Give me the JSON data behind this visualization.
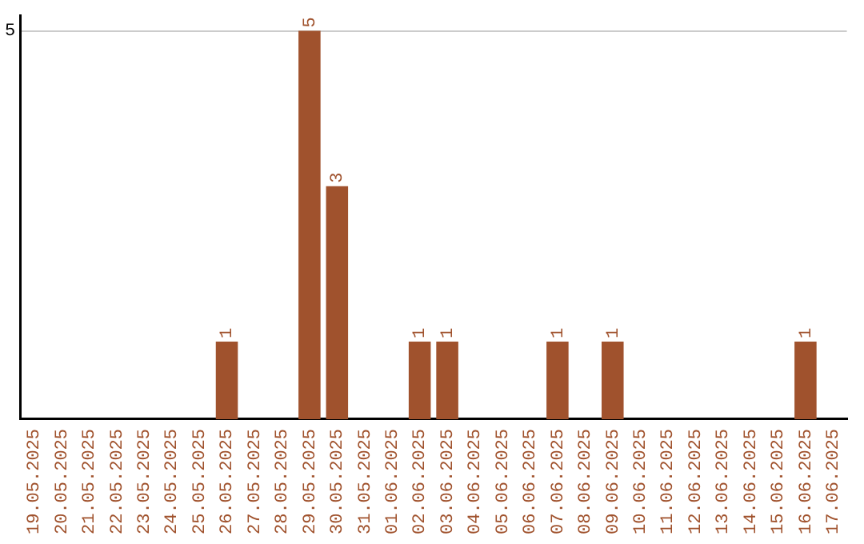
{
  "chart_data": {
    "type": "bar",
    "categories": [
      "19.05.2025",
      "20.05.2025",
      "21.05.2025",
      "22.05.2025",
      "23.05.2025",
      "24.05.2025",
      "25.05.2025",
      "26.05.2025",
      "27.05.2025",
      "28.05.2025",
      "29.05.2025",
      "30.05.2025",
      "31.05.2025",
      "01.06.2025",
      "02.06.2025",
      "03.06.2025",
      "04.06.2025",
      "05.06.2025",
      "06.06.2025",
      "07.06.2025",
      "08.06.2025",
      "09.06.2025",
      "10.06.2025",
      "11.06.2025",
      "12.06.2025",
      "13.06.2025",
      "14.06.2025",
      "15.06.2025",
      "16.06.2025",
      "17.06.2025"
    ],
    "values": [
      0,
      0,
      0,
      0,
      0,
      0,
      0,
      1,
      0,
      0,
      5,
      3,
      0,
      0,
      1,
      1,
      0,
      0,
      0,
      1,
      0,
      1,
      0,
      0,
      0,
      0,
      0,
      0,
      1,
      0
    ],
    "color": "#a0522d",
    "ylim": [
      0,
      5.2
    ],
    "yticks": [
      5
    ],
    "grid": "y",
    "value_labels": [
      null,
      null,
      null,
      null,
      null,
      null,
      null,
      "1",
      null,
      null,
      "5",
      "3",
      null,
      null,
      "1",
      "1",
      null,
      null,
      null,
      "1",
      null,
      "1",
      null,
      null,
      null,
      null,
      null,
      null,
      "1",
      null
    ],
    "legend": false
  }
}
